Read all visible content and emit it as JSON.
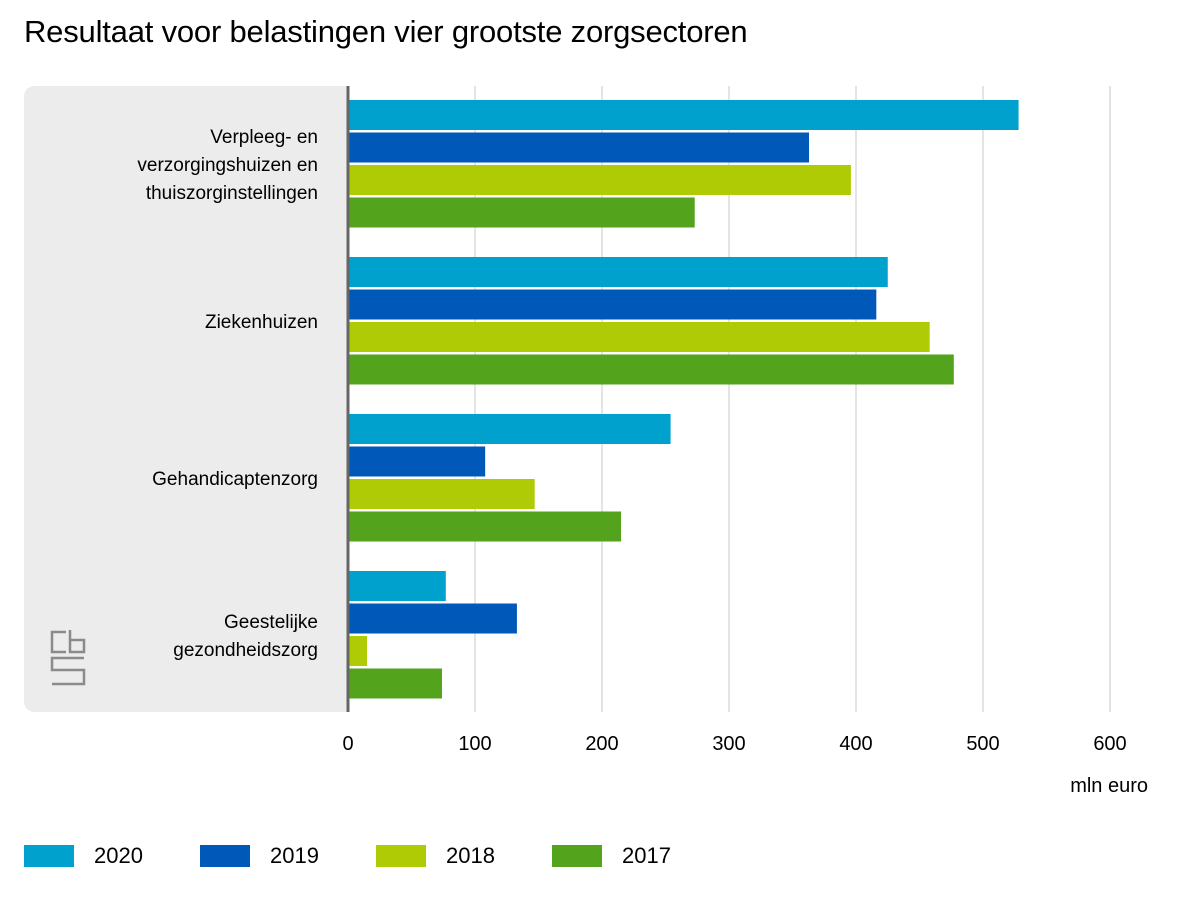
{
  "title": "Resultaat voor belastingen vier grootste zorgsectoren",
  "colors": {
    "2020": "#00a1cd",
    "2019": "#0058b8",
    "2018": "#afcb05",
    "2017": "#53a31d",
    "panel": "#ececec",
    "grid": "#c8c8c8",
    "axis": "#666666"
  },
  "logo": "cbs-logo",
  "chart_data": {
    "type": "bar",
    "orientation": "horizontal",
    "title": "Resultaat voor belastingen vier grootste zorgsectoren",
    "xlabel": "mln euro",
    "ylabel": "",
    "xlim": [
      0,
      600
    ],
    "xticks": [
      0,
      100,
      200,
      300,
      400,
      500,
      600
    ],
    "grid": true,
    "legend_position": "bottom",
    "categories": [
      [
        "Verpleeg- en",
        "verzorgingshuizen en",
        "thuiszorginstellingen"
      ],
      [
        "Ziekenhuizen"
      ],
      [
        "Gehandicaptenzorg"
      ],
      [
        "Geestelijke",
        "gezondheidszorg"
      ]
    ],
    "series": [
      {
        "name": "2020",
        "values": [
          528,
          425,
          254,
          77
        ]
      },
      {
        "name": "2019",
        "values": [
          363,
          416,
          108,
          133
        ]
      },
      {
        "name": "2018",
        "values": [
          396,
          458,
          147,
          15
        ]
      },
      {
        "name": "2017",
        "values": [
          273,
          477,
          215,
          74
        ]
      }
    ]
  }
}
